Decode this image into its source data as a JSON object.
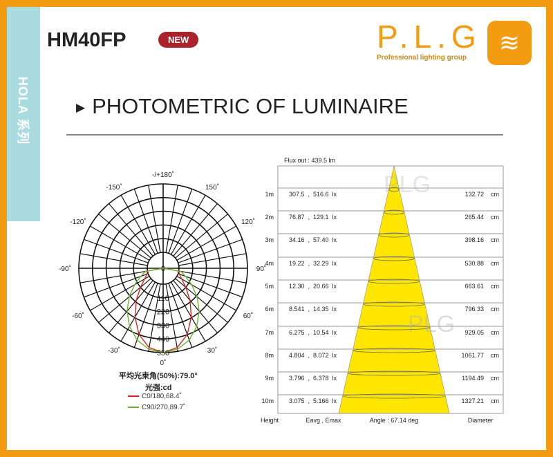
{
  "header": {
    "model": "HM40FP",
    "badge": "NEW",
    "series_tab": "HOLA 系列",
    "logo_text": "P.L.G",
    "logo_tagline": "Professional lighting group",
    "title": "PHOTOMETRIC OF LUMINAIRE",
    "title_icon": "triangle-right-icon"
  },
  "colors": {
    "border": "#f39c12",
    "sidebar": "#a9dbe0",
    "badge": "#a8232a",
    "c0": "#e02020",
    "c90": "#6ab42e",
    "cone": "#ffe600"
  },
  "chart_data": [
    {
      "type": "polar",
      "angle_labels": [
        "-/+180˚",
        "-150˚",
        "150˚",
        "-120˚",
        "120˚",
        "-90˚",
        "90˚",
        "-60˚",
        "60˚",
        "-30˚",
        "30˚",
        "0˚"
      ],
      "radial_ticks": [
        0,
        110,
        220,
        330,
        440,
        550
      ],
      "rmax": 550,
      "beam_angle_label": "平均光束角(50%):79.0°",
      "unit_label": "光强:cd",
      "angles": [
        0,
        10,
        20,
        30,
        40,
        50,
        60,
        70,
        80,
        90
      ],
      "series": [
        {
          "name": "C0/180,68.4˚",
          "color": "#e02020",
          "values": [
            550,
            520,
            439,
            325,
            208,
            109,
            44,
            11,
            1,
            0
          ]
        },
        {
          "name": "C90/270,89.7˚",
          "color": "#6ab42e",
          "values": [
            550,
            533,
            486,
            412,
            323,
            227,
            138,
            64,
            17,
            0
          ]
        }
      ]
    },
    {
      "type": "table",
      "flux": "Flux out : 439.5 lm",
      "angle": "Angle : 67.14 deg",
      "columns": [
        "Height",
        "Eavg , Emax",
        "Diameter"
      ],
      "rows": [
        [
          "1m",
          "307.5  ,  516.6  lx",
          "132.72",
          "cm"
        ],
        [
          "2m",
          "76.87  ,  129.1  lx",
          "265.44",
          "cm"
        ],
        [
          "3m",
          "34.16  ,  57.40  lx",
          "398.16",
          "cm"
        ],
        [
          "4m",
          "19.22  ,  32.29  lx",
          "530.88",
          "cm"
        ],
        [
          "5m",
          "12.30  ,  20.66  lx",
          "663.61",
          "cm"
        ],
        [
          "6m",
          "8.541  ,  14.35  lx",
          "796.33",
          "cm"
        ],
        [
          "7m",
          "6.275  ,  10.54  lx",
          "929.05",
          "cm"
        ],
        [
          "8m",
          "4.804  ,  8.072  lx",
          "1061.77",
          "cm"
        ],
        [
          "9m",
          "3.796  ,  6.378  lx",
          "1194.49",
          "cm"
        ],
        [
          "10m",
          "3.075  ,  5.166  lx",
          "1327.21",
          "cm"
        ]
      ],
      "watermark": "PLG"
    }
  ]
}
